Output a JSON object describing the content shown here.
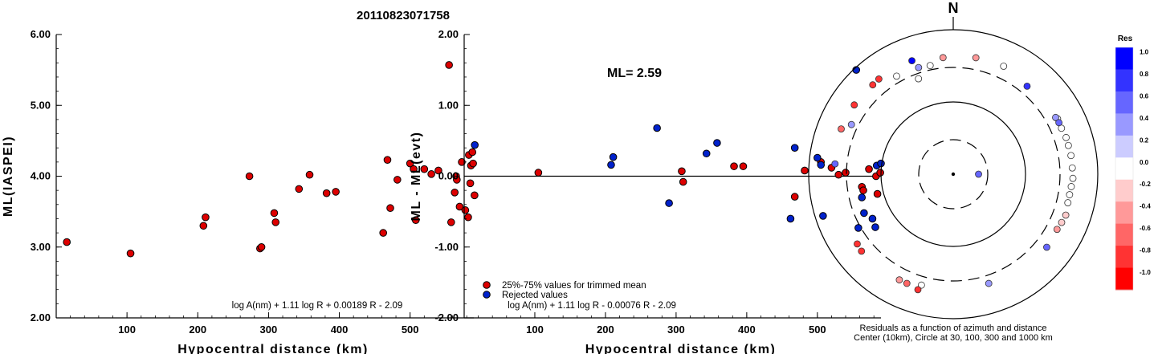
{
  "event_title": "20110823071758",
  "chart_data": [
    {
      "type": "scatter",
      "xlabel": "Hypocentral distance (km)",
      "ylabel": "ML(IASPEI)",
      "xlim": [
        0,
        590
      ],
      "ylim": [
        2.0,
        6.0
      ],
      "x_ticks": [
        "100",
        "200",
        "300",
        "400",
        "500"
      ],
      "y_ticks": [
        "2.00",
        "3.00",
        "4.00",
        "5.00",
        "6.00"
      ],
      "formula": "log A(nm) + 1.11 log R + 0.00189 R - 2.09",
      "series": [
        {
          "color": "#dd0000",
          "points": [
            [
              15,
              3.07
            ],
            [
              105,
              2.91
            ],
            [
              208,
              3.3
            ],
            [
              211,
              3.42
            ],
            [
              273,
              4.0
            ],
            [
              288,
              2.98
            ],
            [
              290,
              3.0
            ],
            [
              308,
              3.48
            ],
            [
              310,
              3.35
            ],
            [
              343,
              3.82
            ],
            [
              358,
              4.02
            ],
            [
              382,
              3.76
            ],
            [
              395,
              3.78
            ],
            [
              462,
              3.2
            ],
            [
              468,
              4.23
            ],
            [
              472,
              3.55
            ],
            [
              482,
              3.95
            ],
            [
              500,
              4.18
            ],
            [
              505,
              4.1
            ],
            [
              508,
              3.38
            ],
            [
              520,
              4.1
            ],
            [
              530,
              4.03
            ],
            [
              540,
              4.08
            ],
            [
              555,
              5.57
            ],
            [
              558,
              3.35
            ],
            [
              563,
              3.77
            ],
            [
              565,
              4.0
            ],
            [
              566,
              3.95
            ],
            [
              570,
              3.57
            ],
            [
              573,
              4.2
            ],
            [
              578,
              3.52
            ],
            [
              582,
              3.42
            ],
            [
              583,
              4.3
            ],
            [
              585,
              3.9
            ],
            [
              586,
              4.15
            ],
            [
              588,
              4.34
            ],
            [
              589,
              4.18
            ],
            [
              591,
              3.73
            ]
          ]
        }
      ]
    },
    {
      "type": "scatter",
      "xlabel": "Hypocentral distance (km)",
      "ylabel": "ML - ML(evt)",
      "xlim": [
        0,
        590
      ],
      "ylim": [
        -2.0,
        2.0
      ],
      "x_ticks": [
        "100",
        "200",
        "300",
        "400",
        "500"
      ],
      "y_ticks": [
        "-2.00",
        "-1.00",
        "0.00",
        "1.00",
        "2.00"
      ],
      "annotation": "ML= 2.59",
      "formula": "log A(nm) + 1.11 log R - 0.00076 R - 2.09",
      "legend": [
        {
          "label": "25%-75% values for trimmed mean",
          "color": "#dd0000"
        },
        {
          "label": "Rejected values",
          "color": "#0022cc"
        }
      ],
      "series": [
        {
          "name": "25%-75% values for trimmed mean",
          "color": "#dd0000",
          "points": [
            [
              105,
              0.05
            ],
            [
              308,
              0.07
            ],
            [
              310,
              -0.08
            ],
            [
              382,
              0.14
            ],
            [
              395,
              0.14
            ],
            [
              468,
              -0.29
            ],
            [
              482,
              0.08
            ],
            [
              505,
              0.2
            ],
            [
              520,
              0.12
            ],
            [
              530,
              0.02
            ],
            [
              540,
              0.05
            ],
            [
              563,
              -0.15
            ],
            [
              565,
              -0.2
            ],
            [
              573,
              0.1
            ],
            [
              583,
              0.0
            ],
            [
              585,
              -0.25
            ],
            [
              589,
              0.05
            ]
          ]
        },
        {
          "name": "Rejected values",
          "color": "#0022cc",
          "points": [
            [
              15,
              0.44
            ],
            [
              208,
              0.16
            ],
            [
              211,
              0.27
            ],
            [
              273,
              0.68
            ],
            [
              290,
              -0.38
            ],
            [
              343,
              0.32
            ],
            [
              358,
              0.47
            ],
            [
              462,
              -0.6
            ],
            [
              468,
              0.4
            ],
            [
              500,
              0.26
            ],
            [
              505,
              0.16
            ],
            [
              508,
              -0.56
            ],
            [
              555,
              1.5
            ],
            [
              558,
              -0.73
            ],
            [
              563,
              -0.3
            ],
            [
              566,
              -0.52
            ],
            [
              578,
              -0.6
            ],
            [
              582,
              -0.72
            ],
            [
              584,
              0.15
            ],
            [
              590,
              0.18
            ]
          ]
        }
      ]
    },
    {
      "type": "scatter",
      "subtype": "polar",
      "north_label": "N",
      "caption_line1": "Residuals as a function of azimuth and distance",
      "caption_line2": "Center (10km), Circle at 30, 100, 300 and 1000 km",
      "colorbar": {
        "title": "Res",
        "labels": [
          "1.0",
          "0.8",
          "0.6",
          "0.4",
          "0.2",
          "0.0",
          "-0.2",
          "-0.4",
          "-0.6",
          "-0.8",
          "-1.0"
        ],
        "colors": [
          "#0000ff",
          "#3333ff",
          "#6666ff",
          "#9999ff",
          "#ccccff",
          "#ffffff",
          "#ffcccc",
          "#ff9999",
          "#ff6666",
          "#ff3333",
          "#ff0000"
        ]
      },
      "stations": [
        {
          "azimuth": 90,
          "distance": 22,
          "res": 0.6
        },
        {
          "azimuth": 340,
          "distance": 270,
          "res": 0.0
        },
        {
          "azimuth": 330,
          "distance": 420,
          "res": 0.0
        },
        {
          "azimuth": 348,
          "distance": 380,
          "res": 0.0
        },
        {
          "azimuth": 355,
          "distance": 490,
          "res": -0.4
        },
        {
          "azimuth": 340,
          "distance": 560,
          "res": 1.0
        },
        {
          "azimuth": 342,
          "distance": 400,
          "res": 0.3
        },
        {
          "azimuth": 322,
          "distance": 560,
          "res": -0.7
        },
        {
          "azimuth": 318,
          "distance": 550,
          "res": -0.8
        },
        {
          "azimuth": 305,
          "distance": 560,
          "res": -0.7
        },
        {
          "azimuth": 292,
          "distance": 560,
          "res": -0.5
        },
        {
          "azimuth": 296,
          "distance": 420,
          "res": 0.4
        },
        {
          "azimuth": 275,
          "distance": 520,
          "res": 0.6
        },
        {
          "azimuth": 230,
          "distance": 540,
          "res": -0.8
        },
        {
          "azimuth": 234,
          "distance": 520,
          "res": -0.9
        },
        {
          "azimuth": 207,
          "distance": 520,
          "res": -0.4
        },
        {
          "azimuth": 203,
          "distance": 520,
          "res": -0.6
        },
        {
          "azimuth": 196,
          "distance": 460,
          "res": 0.1
        },
        {
          "azimuth": 197,
          "distance": 560,
          "res": -0.9
        },
        {
          "azimuth": 162,
          "distance": 450,
          "res": 0.3
        },
        {
          "azimuth": 128,
          "distance": 520,
          "res": 0.6
        },
        {
          "azimuth": 118,
          "distance": 500,
          "res": -0.3
        },
        {
          "azimuth": 114,
          "distance": 520,
          "res": -0.2
        },
        {
          "azimuth": 110,
          "distance": 540,
          "res": -0.1
        },
        {
          "azimuth": 104,
          "distance": 510,
          "res": 0.0
        },
        {
          "azimuth": 100,
          "distance": 510,
          "res": 0.0
        },
        {
          "azimuth": 96,
          "distance": 520,
          "res": 0.0
        },
        {
          "azimuth": 92,
          "distance": 540,
          "res": 0.0
        },
        {
          "azimuth": 87,
          "distance": 530,
          "res": 0.1
        },
        {
          "azimuth": 81,
          "distance": 530,
          "res": 0.0
        },
        {
          "azimuth": 76,
          "distance": 520,
          "res": 0.0
        },
        {
          "azimuth": 72,
          "distance": 520,
          "res": 0.0
        },
        {
          "azimuth": 67,
          "distance": 500,
          "res": 0.0
        },
        {
          "azimuth": 62,
          "distance": 510,
          "res": 0.0
        },
        {
          "azimuth": 61,
          "distance": 490,
          "res": 0.4
        },
        {
          "azimuth": 64,
          "distance": 500,
          "res": 0.7
        },
        {
          "azimuth": 40,
          "distance": 450,
          "res": 0.8
        },
        {
          "azimuth": 25,
          "distance": 530,
          "res": 0.0
        },
        {
          "azimuth": 11,
          "distance": 520,
          "res": -0.4
        }
      ]
    }
  ]
}
